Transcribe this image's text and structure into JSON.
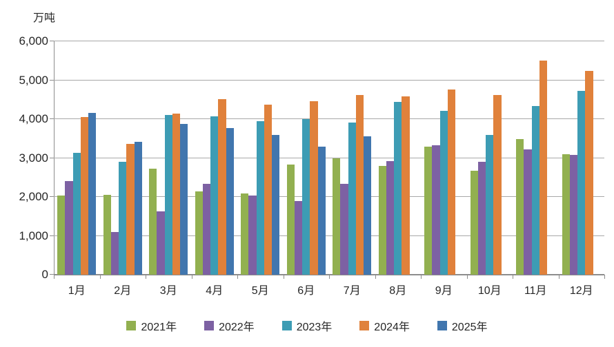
{
  "chart_data": {
    "type": "bar",
    "title": "",
    "unit_label": "万吨",
    "xlabel": "",
    "ylabel": "万吨",
    "categories": [
      "1月",
      "2月",
      "3月",
      "4月",
      "5月",
      "6月",
      "7月",
      "8月",
      "9月",
      "10月",
      "11月",
      "12月"
    ],
    "series": [
      {
        "name": "2021年",
        "color": "#92B050",
        "values": [
          2030,
          2060,
          2730,
          2150,
          2080,
          2830,
          3000,
          2790,
          3290,
          2670,
          3490,
          3100
        ]
      },
      {
        "name": "2022年",
        "color": "#7D61A3",
        "values": [
          2400,
          1100,
          1620,
          2330,
          2040,
          1890,
          2330,
          2920,
          3320,
          2900,
          3220,
          3080
        ]
      },
      {
        "name": "2023年",
        "color": "#3D9CB4",
        "values": [
          3130,
          2900,
          4100,
          4070,
          3950,
          4000,
          3910,
          4440,
          4210,
          3590,
          4340,
          4720
        ]
      },
      {
        "name": "2024年",
        "color": "#E0813B",
        "values": [
          4060,
          3360,
          4140,
          4520,
          4370,
          4460,
          4620,
          4580,
          4760,
          4620,
          5500,
          5240
        ]
      },
      {
        "name": "2025年",
        "color": "#4176AE",
        "values": [
          4160,
          3420,
          3880,
          3770,
          3600,
          3300,
          3560,
          null,
          null,
          null,
          null,
          null
        ]
      }
    ],
    "ylim": [
      0,
      6000
    ],
    "ytick_step": 1000,
    "ytick_labels": [
      "0",
      "1,000",
      "2,000",
      "3,000",
      "4,000",
      "5,000",
      "6,000"
    ],
    "grid": true,
    "legend_position": "bottom"
  },
  "colors": {
    "background": "#FFFFFF",
    "gridline": "#A8A8A8",
    "axis": "#8C8C8C",
    "text": "#262626"
  }
}
